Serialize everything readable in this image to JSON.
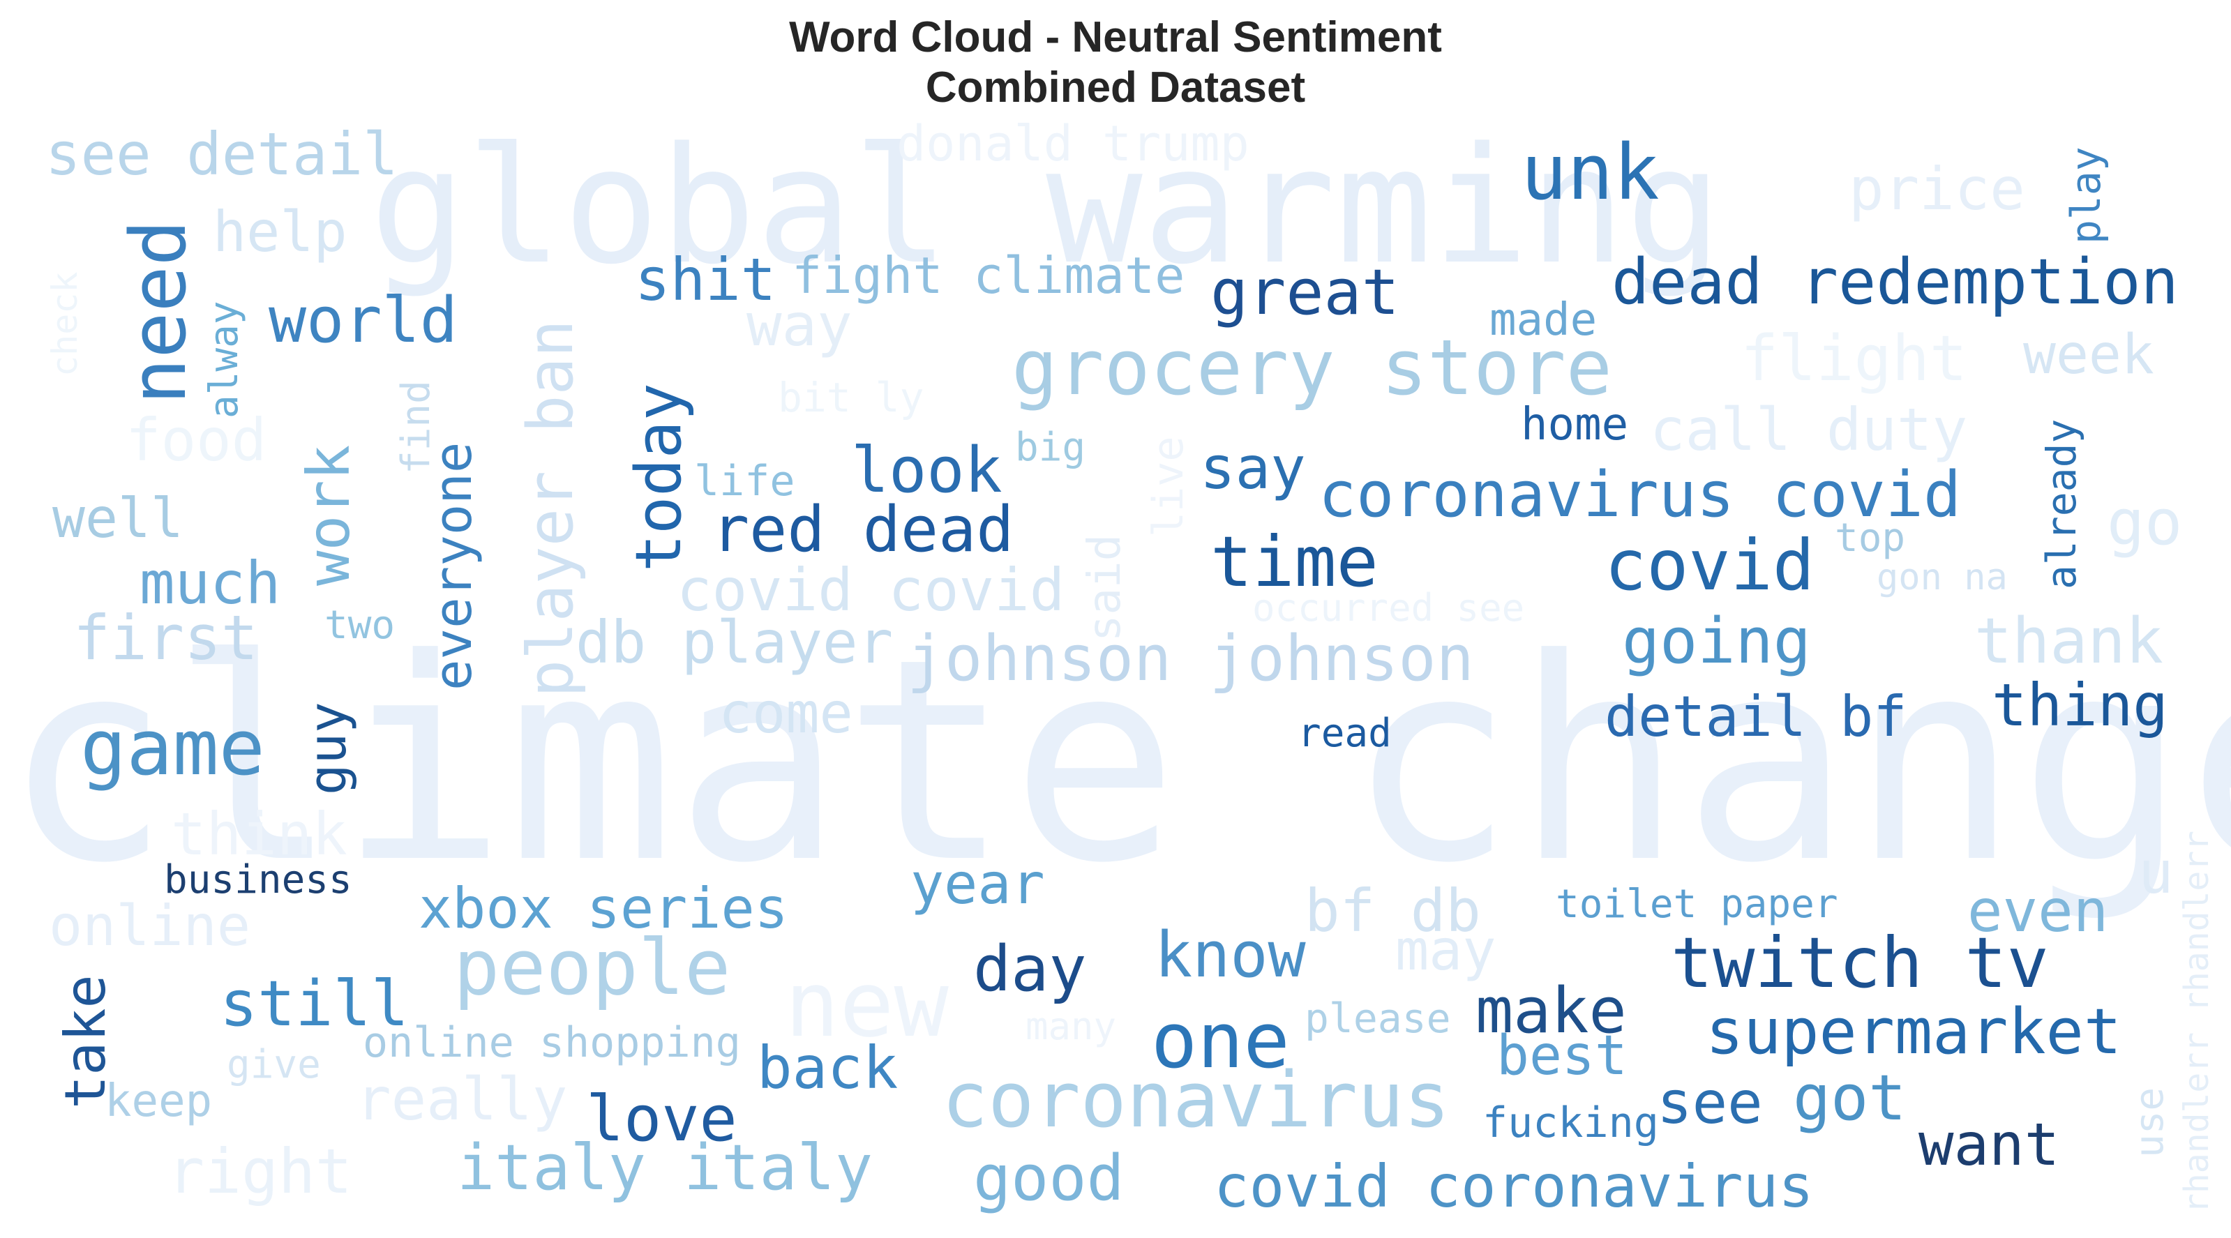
{
  "chart_data": {
    "type": "wordcloud",
    "title": "Word Cloud - Neutral Sentiment",
    "subtitle": "Combined Dataset",
    "colormap": "Blues",
    "words": [
      {
        "text": "climate change",
        "weight": 1.0,
        "color": "#e8f0fa"
      },
      {
        "text": "global warming",
        "weight": 0.62,
        "color": "#e5eef9"
      },
      {
        "text": "unk",
        "weight": 0.32,
        "color": "#2b73b4"
      },
      {
        "text": "see detail",
        "weight": 0.25,
        "color": "#b8d5ea"
      },
      {
        "text": "donald trump",
        "weight": 0.2,
        "color": "#eef4fb"
      },
      {
        "text": "price",
        "weight": 0.26,
        "color": "#e6eff9"
      },
      {
        "text": "play",
        "weight": 0.18,
        "color": "#3f85c2"
      },
      {
        "text": "help",
        "weight": 0.24,
        "color": "#d6e6f4"
      },
      {
        "text": "need",
        "weight": 0.33,
        "color": "#3a7fbe"
      },
      {
        "text": "check",
        "weight": 0.16,
        "color": "#eef5fb"
      },
      {
        "text": "alway",
        "weight": 0.17,
        "color": "#6aaed6"
      },
      {
        "text": "world",
        "weight": 0.27,
        "color": "#3e84c1"
      },
      {
        "text": "shit",
        "weight": 0.24,
        "color": "#3c82c0"
      },
      {
        "text": "fight climate",
        "weight": 0.22,
        "color": "#8fbfdf"
      },
      {
        "text": "great",
        "weight": 0.27,
        "color": "#1d4f91"
      },
      {
        "text": "dead redemption",
        "weight": 0.27,
        "color": "#1a5798"
      },
      {
        "text": "made",
        "weight": 0.2,
        "color": "#6aa8d4"
      },
      {
        "text": "way",
        "weight": 0.24,
        "color": "#e4eef8"
      },
      {
        "text": "grocery store",
        "weight": 0.33,
        "color": "#a8cde4"
      },
      {
        "text": "flight",
        "weight": 0.27,
        "color": "#eef5fb"
      },
      {
        "text": "week",
        "weight": 0.24,
        "color": "#d6e6f4"
      },
      {
        "text": "bit ly",
        "weight": 0.17,
        "color": "#eef5fb"
      },
      {
        "text": "food",
        "weight": 0.24,
        "color": "#eef5fb"
      },
      {
        "text": "find",
        "weight": 0.16,
        "color": "#c6dcee"
      },
      {
        "text": "player ban",
        "weight": 0.27,
        "color": "#cfe1f2"
      },
      {
        "text": "home",
        "weight": 0.2,
        "color": "#1f5ea4"
      },
      {
        "text": "call duty",
        "weight": 0.24,
        "color": "#e5eff9"
      },
      {
        "text": "already",
        "weight": 0.17,
        "color": "#2a6fb0"
      },
      {
        "text": "work",
        "weight": 0.25,
        "color": "#7ab5da"
      },
      {
        "text": "everyone",
        "weight": 0.22,
        "color": "#3c82c0"
      },
      {
        "text": "today",
        "weight": 0.27,
        "color": "#2166ac"
      },
      {
        "text": "life",
        "weight": 0.18,
        "color": "#90c2e0"
      },
      {
        "text": "look",
        "weight": 0.27,
        "color": "#2a6db0"
      },
      {
        "text": "big",
        "weight": 0.17,
        "color": "#9ecae1"
      },
      {
        "text": "live",
        "weight": 0.18,
        "color": "#eef4fb"
      },
      {
        "text": "say",
        "weight": 0.26,
        "color": "#2b70b1"
      },
      {
        "text": "coronavirus covid",
        "weight": 0.28,
        "color": "#3a80bf"
      },
      {
        "text": "well",
        "weight": 0.24,
        "color": "#a7cce3"
      },
      {
        "text": "red dead",
        "weight": 0.27,
        "color": "#1d5aa0"
      },
      {
        "text": "top",
        "weight": 0.17,
        "color": "#a6cbe3"
      },
      {
        "text": "go",
        "weight": 0.27,
        "color": "#e1edf8"
      },
      {
        "text": "much",
        "weight": 0.25,
        "color": "#6ba8d5"
      },
      {
        "text": "time",
        "weight": 0.3,
        "color": "#1a5799"
      },
      {
        "text": "covid",
        "weight": 0.3,
        "color": "#2468aa"
      },
      {
        "text": "gon na",
        "weight": 0.16,
        "color": "#d4e4f3"
      },
      {
        "text": "covid covid",
        "weight": 0.24,
        "color": "#d6e6f4"
      },
      {
        "text": "said",
        "weight": 0.2,
        "color": "#e4eef8"
      },
      {
        "text": "occurred see",
        "weight": 0.16,
        "color": "#edf4fb"
      },
      {
        "text": "first",
        "weight": 0.27,
        "color": "#c2d9ed"
      },
      {
        "text": "two",
        "weight": 0.17,
        "color": "#92c4e0"
      },
      {
        "text": "db player",
        "weight": 0.26,
        "color": "#c5dcee"
      },
      {
        "text": "johnson johnson",
        "weight": 0.27,
        "color": "#c0d7ec"
      },
      {
        "text": "going",
        "weight": 0.27,
        "color": "#4d94c8"
      },
      {
        "text": "thank",
        "weight": 0.27,
        "color": "#d4e5f3"
      },
      {
        "text": "game",
        "weight": 0.3,
        "color": "#4c92c6"
      },
      {
        "text": "guy",
        "weight": 0.22,
        "color": "#1a5290"
      },
      {
        "text": "come",
        "weight": 0.24,
        "color": "#d4e5f4"
      },
      {
        "text": "detail bf",
        "weight": 0.24,
        "color": "#2a6ab0"
      },
      {
        "text": "thing",
        "weight": 0.25,
        "color": "#1a5799"
      },
      {
        "text": "read",
        "weight": 0.17,
        "color": "#1b5aa0"
      },
      {
        "text": "think",
        "weight": 0.24,
        "color": "#eef4fb"
      },
      {
        "text": "rhandlerr rhandlerr",
        "weight": 0.16,
        "color": "#e4eef8"
      },
      {
        "text": "business",
        "weight": 0.18,
        "color": "#1c3f70"
      },
      {
        "text": "xbox series",
        "weight": 0.24,
        "color": "#5ca2d2"
      },
      {
        "text": "year",
        "weight": 0.24,
        "color": "#5aa0cf"
      },
      {
        "text": "bf db",
        "weight": 0.25,
        "color": "#d2e3f2"
      },
      {
        "text": "toilet paper",
        "weight": 0.17,
        "color": "#5b9fd0"
      },
      {
        "text": "even",
        "weight": 0.25,
        "color": "#7fb7db"
      },
      {
        "text": "u",
        "weight": 0.24,
        "color": "#dfebf7"
      },
      {
        "text": "online",
        "weight": 0.24,
        "color": "#e6eff9"
      },
      {
        "text": "people",
        "weight": 0.33,
        "color": "#b0d2e8"
      },
      {
        "text": "new",
        "weight": 0.33,
        "color": "#eef4fb"
      },
      {
        "text": "may",
        "weight": 0.24,
        "color": "#e2edf8"
      },
      {
        "text": "take",
        "weight": 0.22,
        "color": "#1e5596"
      },
      {
        "text": "still",
        "weight": 0.28,
        "color": "#3f8ac4"
      },
      {
        "text": "day",
        "weight": 0.28,
        "color": "#1c4c8a"
      },
      {
        "text": "know",
        "weight": 0.28,
        "color": "#4a8fc6"
      },
      {
        "text": "twitch tv",
        "weight": 0.3,
        "color": "#1b5090"
      },
      {
        "text": "online shopping",
        "weight": 0.2,
        "color": "#a8cce4"
      },
      {
        "text": "one",
        "weight": 0.33,
        "color": "#2c76b8"
      },
      {
        "text": "please",
        "weight": 0.18,
        "color": "#aed1e7"
      },
      {
        "text": "make",
        "weight": 0.27,
        "color": "#1e4f8a"
      },
      {
        "text": "supermarket",
        "weight": 0.27,
        "color": "#2469ac"
      },
      {
        "text": "many",
        "weight": 0.16,
        "color": "#eef4fb"
      },
      {
        "text": "give",
        "weight": 0.17,
        "color": "#d5e5f3"
      },
      {
        "text": "back",
        "weight": 0.26,
        "color": "#3f87c3"
      },
      {
        "text": "best",
        "weight": 0.24,
        "color": "#5c9fd1"
      },
      {
        "text": "keep",
        "weight": 0.2,
        "color": "#aed0e7"
      },
      {
        "text": "really",
        "weight": 0.27,
        "color": "#e6eff9"
      },
      {
        "text": "coronavirus",
        "weight": 0.33,
        "color": "#acd0e7"
      },
      {
        "text": "love",
        "weight": 0.27,
        "color": "#1f5ba0"
      },
      {
        "text": "fucking",
        "weight": 0.17,
        "color": "#3c82c0"
      },
      {
        "text": "see",
        "weight": 0.24,
        "color": "#2b6fb0"
      },
      {
        "text": "got",
        "weight": 0.27,
        "color": "#4c93c6"
      },
      {
        "text": "use",
        "weight": 0.17,
        "color": "#d6e6f4"
      },
      {
        "text": "want",
        "weight": 0.25,
        "color": "#1c3d6e"
      },
      {
        "text": "right",
        "weight": 0.27,
        "color": "#eaf2fa"
      },
      {
        "text": "italy italy",
        "weight": 0.28,
        "color": "#8fc1df"
      },
      {
        "text": "good",
        "weight": 0.28,
        "color": "#7cb5da"
      },
      {
        "text": "covid coronavirus",
        "weight": 0.27,
        "color": "#4d93c7"
      }
    ]
  }
}
